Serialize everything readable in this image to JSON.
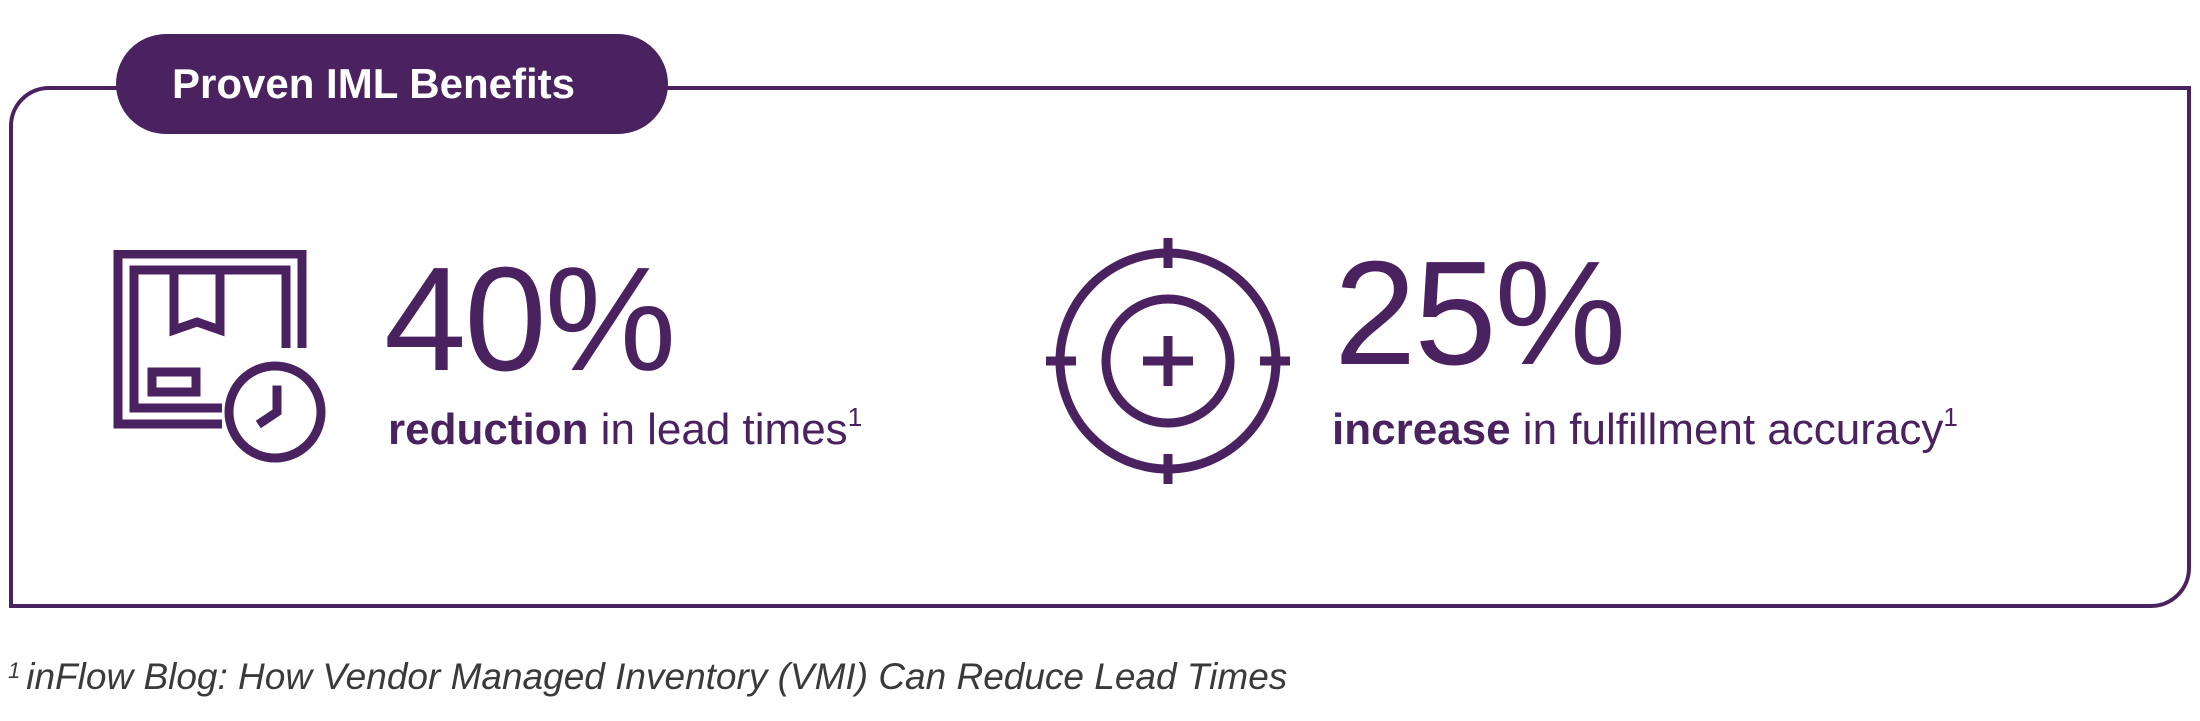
{
  "header": {
    "title": "Proven IML Benefits"
  },
  "stats": [
    {
      "icon": "package-clock-icon",
      "value": "40%",
      "emphasis": "reduction",
      "rest": " in lead times",
      "note_marker": "1"
    },
    {
      "icon": "target-crosshair-icon",
      "value": "25%",
      "emphasis": "increase",
      "rest": " in fulfillment accuracy",
      "note_marker": "1"
    }
  ],
  "footnote": {
    "marker": "1",
    "text": "inFlow Blog: How Vendor Managed Inventory (VMI) Can Reduce Lead Times"
  },
  "colors": {
    "brand_purple": "#4b2260",
    "footnote_text": "#3a3a3a"
  }
}
